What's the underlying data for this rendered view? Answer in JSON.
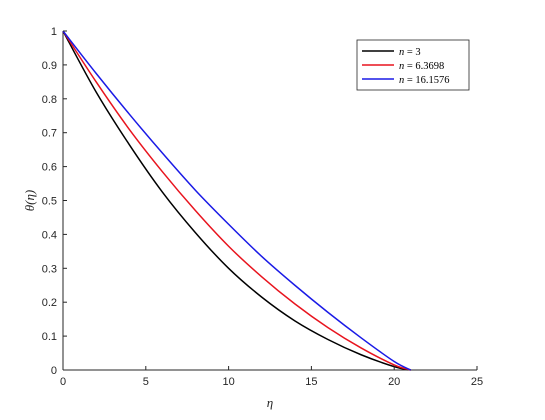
{
  "chart_data": {
    "type": "line",
    "xlabel": "η",
    "ylabel": "θ(η)",
    "xlim": [
      0,
      25
    ],
    "ylim": [
      0,
      1
    ],
    "xticks": [
      0,
      5,
      10,
      15,
      20,
      25
    ],
    "yticks": [
      0,
      0.1,
      0.2,
      0.3,
      0.4,
      0.5,
      0.6,
      0.7,
      0.8,
      0.9,
      1
    ],
    "grid": false,
    "legend_position": "top-right",
    "series": [
      {
        "name": "n = 3",
        "legend_var": "n",
        "legend_value": "3",
        "color": "#000000",
        "x": [
          0,
          2,
          4,
          6,
          8,
          10,
          12,
          14,
          16,
          18,
          20,
          21
        ],
        "y": [
          1.0,
          0.82,
          0.665,
          0.525,
          0.405,
          0.3,
          0.215,
          0.145,
          0.09,
          0.045,
          0.01,
          0.0
        ]
      },
      {
        "name": "n = 6.3698",
        "legend_var": "n",
        "legend_value": "6.3698",
        "color": "#e8141e",
        "x": [
          0,
          2,
          4,
          6,
          8,
          10,
          12,
          14,
          16,
          18,
          20,
          21
        ],
        "y": [
          1.0,
          0.85,
          0.71,
          0.585,
          0.47,
          0.365,
          0.275,
          0.195,
          0.125,
          0.065,
          0.015,
          0.0
        ]
      },
      {
        "name": "n = 16.1576",
        "legend_var": "n",
        "legend_value": "16.1576",
        "color": "#1a1ae6",
        "x": [
          0,
          2,
          4,
          6,
          8,
          10,
          12,
          14,
          16,
          18,
          20,
          21
        ],
        "y": [
          1.0,
          0.875,
          0.755,
          0.64,
          0.53,
          0.43,
          0.335,
          0.25,
          0.17,
          0.095,
          0.025,
          0.0
        ]
      }
    ]
  }
}
